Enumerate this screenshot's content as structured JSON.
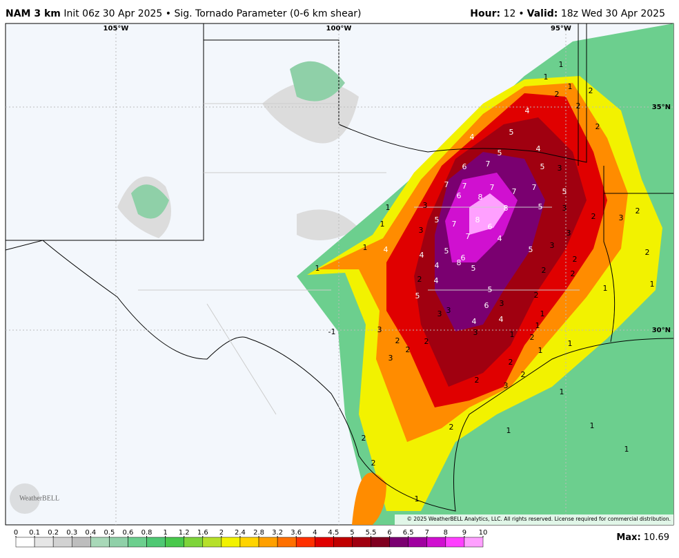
{
  "header": {
    "model": "NAM 3 km",
    "subtitle": "Init 06z 30 Apr 2025 • Sig. Tornado Parameter (0-6 km shear)",
    "hour_label": "Hour:",
    "hour_value": "12",
    "separator": "•",
    "valid_label": "Valid:",
    "valid_value": "18z Wed 30 Apr 2025"
  },
  "map": {
    "longitudes": [
      "105°W",
      "100°W",
      "95°W"
    ],
    "latitudes": [
      "35°N",
      "30°N"
    ],
    "logo": "WeatherBELL",
    "copyright": "© 2025 WeatherBELL Analytics, LLC. All rights reserved. License required for commercial distribution.",
    "contour_labels": [
      1,
      1,
      1,
      2,
      2,
      2,
      2,
      4,
      5,
      4,
      5,
      4,
      6,
      7,
      5,
      3,
      7,
      7,
      7,
      7,
      7,
      5,
      6,
      8,
      8,
      5,
      3,
      2,
      3,
      2,
      3,
      1,
      1,
      3,
      5,
      7,
      8,
      6,
      7,
      4,
      5,
      3,
      3,
      1,
      4,
      4,
      5,
      6,
      8,
      4,
      5,
      1,
      2,
      4,
      2,
      2,
      2,
      2,
      1,
      1,
      5,
      5,
      2,
      3,
      3,
      6,
      3,
      1,
      -1,
      3,
      4,
      4,
      1,
      3,
      1,
      2,
      2,
      2,
      2,
      1,
      3,
      1,
      2,
      2,
      2,
      3,
      1,
      1,
      1,
      1,
      2,
      2,
      2,
      1
    ]
  },
  "colorbar": {
    "ticks": [
      0,
      0.1,
      0.2,
      0.3,
      0.4,
      0.5,
      0.6,
      0.8,
      1,
      1.2,
      1.6,
      2,
      2.4,
      2.8,
      3.2,
      3.6,
      4,
      4.5,
      5,
      5.5,
      6,
      6.5,
      7,
      8,
      9,
      10
    ],
    "colors": [
      "#ffffff",
      "#e6e6e6",
      "#d2d2d2",
      "#bdbdbd",
      "#a8d8b8",
      "#8fd0a8",
      "#6ccf8e",
      "#4fc873",
      "#49c84c",
      "#7ed43a",
      "#b6e02a",
      "#f2f200",
      "#ffd400",
      "#ffa000",
      "#ff7000",
      "#ff3000",
      "#e00000",
      "#c00000",
      "#a00010",
      "#800020",
      "#7a0070",
      "#a000a0",
      "#d010d0",
      "#ff40ff",
      "#ffa0ff"
    ],
    "max_label": "Max:",
    "max_value": 10.69
  }
}
